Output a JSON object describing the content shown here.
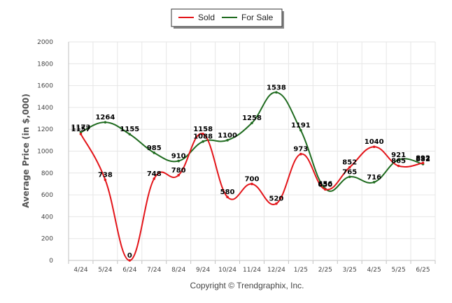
{
  "chart_data": {
    "type": "line",
    "ylabel": "Average Price (in $,000)",
    "xlabel": "",
    "ylim": [
      0,
      2000
    ],
    "yticks": [
      0,
      200,
      400,
      600,
      800,
      1000,
      1200,
      1400,
      1600,
      1800,
      2000
    ],
    "categories": [
      "4/24",
      "5/24",
      "6/24",
      "7/24",
      "8/24",
      "9/24",
      "10/24",
      "11/24",
      "12/24",
      "1/25",
      "2/25",
      "3/25",
      "4/25",
      "5/25",
      "6/25"
    ],
    "series": [
      {
        "name": "Sold",
        "color": "#e3151a",
        "values": [
          1157,
          738,
          0,
          748,
          780,
          1158,
          580,
          700,
          520,
          973,
          650,
          852,
          1040,
          865,
          892
        ]
      },
      {
        "name": "For Sale",
        "color": "#1f6b1f",
        "values": [
          1173,
          1264,
          1155,
          985,
          910,
          1088,
          1100,
          1258,
          1538,
          1191,
          656,
          765,
          716,
          921,
          882
        ]
      }
    ],
    "grid": true,
    "legend": "top-center"
  },
  "footer": {
    "copyright": "Copyright © Trendgraphix, Inc."
  }
}
